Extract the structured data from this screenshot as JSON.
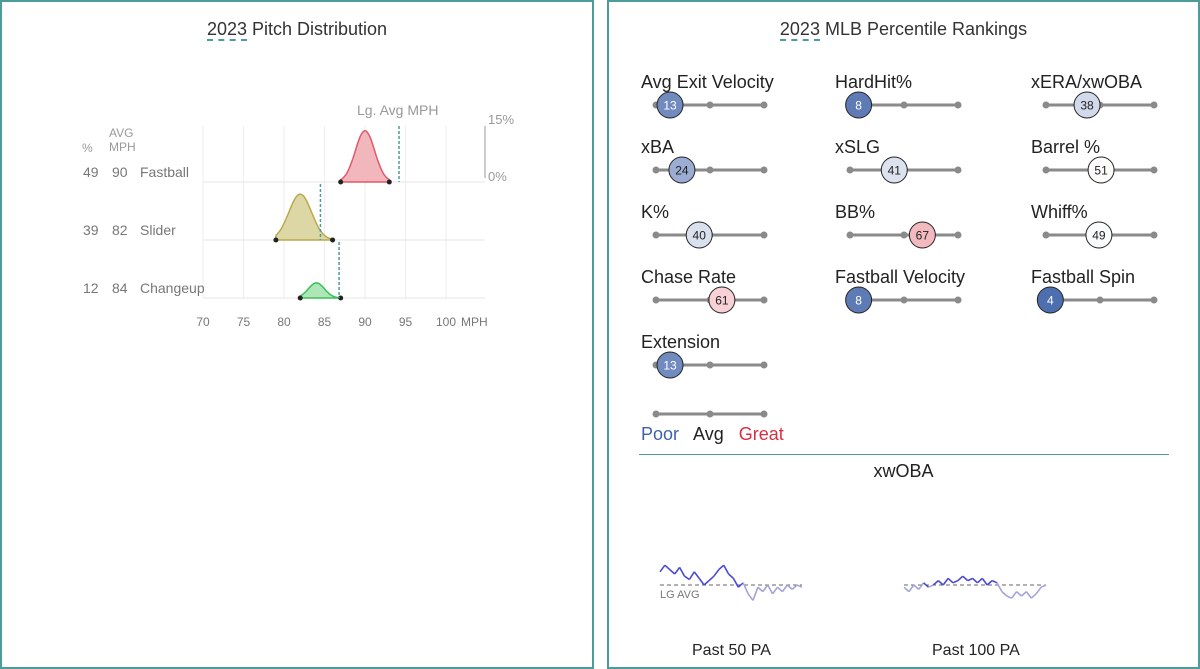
{
  "left_panel": {
    "title_year": "2023",
    "title_rest": "Pitch Distribution",
    "header_pct": "%",
    "header_avg": "AVG",
    "header_mph": "MPH",
    "league_avg_label": "Lg. Avg MPH",
    "scale_top": "15%",
    "scale_bottom": "0%",
    "x_unit": "MPH"
  },
  "chart_data": [
    {
      "type": "area",
      "x_ticks": [
        70,
        75,
        80,
        85,
        90,
        95,
        100
      ],
      "xlim": [
        68,
        103
      ],
      "pitches": [
        {
          "name": "Fastball",
          "pct": 49,
          "avg_mph": 90,
          "min": 87,
          "max": 93,
          "peak": 0.95,
          "lg_avg": 94.2,
          "color": "#e05a68",
          "fill": "#f2b6bd"
        },
        {
          "name": "Slider",
          "pct": 39,
          "avg_mph": 82,
          "min": 79,
          "max": 86,
          "peak": 0.85,
          "lg_avg": 84.5,
          "color": "#b8aa4c",
          "fill": "#ddd7a6"
        },
        {
          "name": "Changeup",
          "pct": 12,
          "avg_mph": 84,
          "min": 82,
          "max": 87,
          "peak": 0.28,
          "lg_avg": 86.8,
          "color": "#3bbf57",
          "fill": "#aee6b8"
        }
      ]
    },
    {
      "type": "scatter",
      "title_year": "2023",
      "title_rest": "MLB Percentile Rankings",
      "metrics": [
        {
          "label": "Avg Exit Velocity",
          "value": 13
        },
        {
          "label": "HardHit%",
          "value": 8
        },
        {
          "label": "xERA/xwOBA",
          "value": 38
        },
        {
          "label": "xBA",
          "value": 24
        },
        {
          "label": "xSLG",
          "value": 41
        },
        {
          "label": "Barrel %",
          "value": 51
        },
        {
          "label": "K%",
          "value": 40
        },
        {
          "label": "BB%",
          "value": 67
        },
        {
          "label": "Whiff%",
          "value": 49
        },
        {
          "label": "Chase Rate",
          "value": 61
        },
        {
          "label": "Fastball Velocity",
          "value": 8
        },
        {
          "label": "Fastball Spin",
          "value": 4
        },
        {
          "label": "Extension",
          "value": 13
        }
      ],
      "legend": {
        "poor": "Poor",
        "avg": "Avg",
        "great": "Great"
      },
      "colors": {
        "poor": "#3f62a8",
        "avg": "#ffffff",
        "great": "#d9303f"
      }
    },
    {
      "type": "line",
      "title": "xwOBA",
      "baseline_label": "LG AVG",
      "panels": [
        {
          "label": "Past 50 PA",
          "values": [
            0.42,
            0.48,
            0.44,
            0.4,
            0.46,
            0.38,
            0.35,
            0.42,
            0.36,
            0.3,
            0.34,
            0.38,
            0.44,
            0.48,
            0.4,
            0.36,
            0.28,
            0.32,
            0.22,
            0.16,
            0.28,
            0.24,
            0.3,
            0.22,
            0.28,
            0.24,
            0.3,
            0.26,
            0.3,
            0.28
          ]
        },
        {
          "label": "Past 100 PA",
          "values": [
            0.28,
            0.24,
            0.3,
            0.26,
            0.32,
            0.28,
            0.3,
            0.34,
            0.3,
            0.36,
            0.32,
            0.34,
            0.38,
            0.34,
            0.36,
            0.32,
            0.36,
            0.3,
            0.34,
            0.32,
            0.24,
            0.2,
            0.18,
            0.24,
            0.2,
            0.24,
            0.18,
            0.22,
            0.28,
            0.3
          ]
        }
      ]
    }
  ]
}
